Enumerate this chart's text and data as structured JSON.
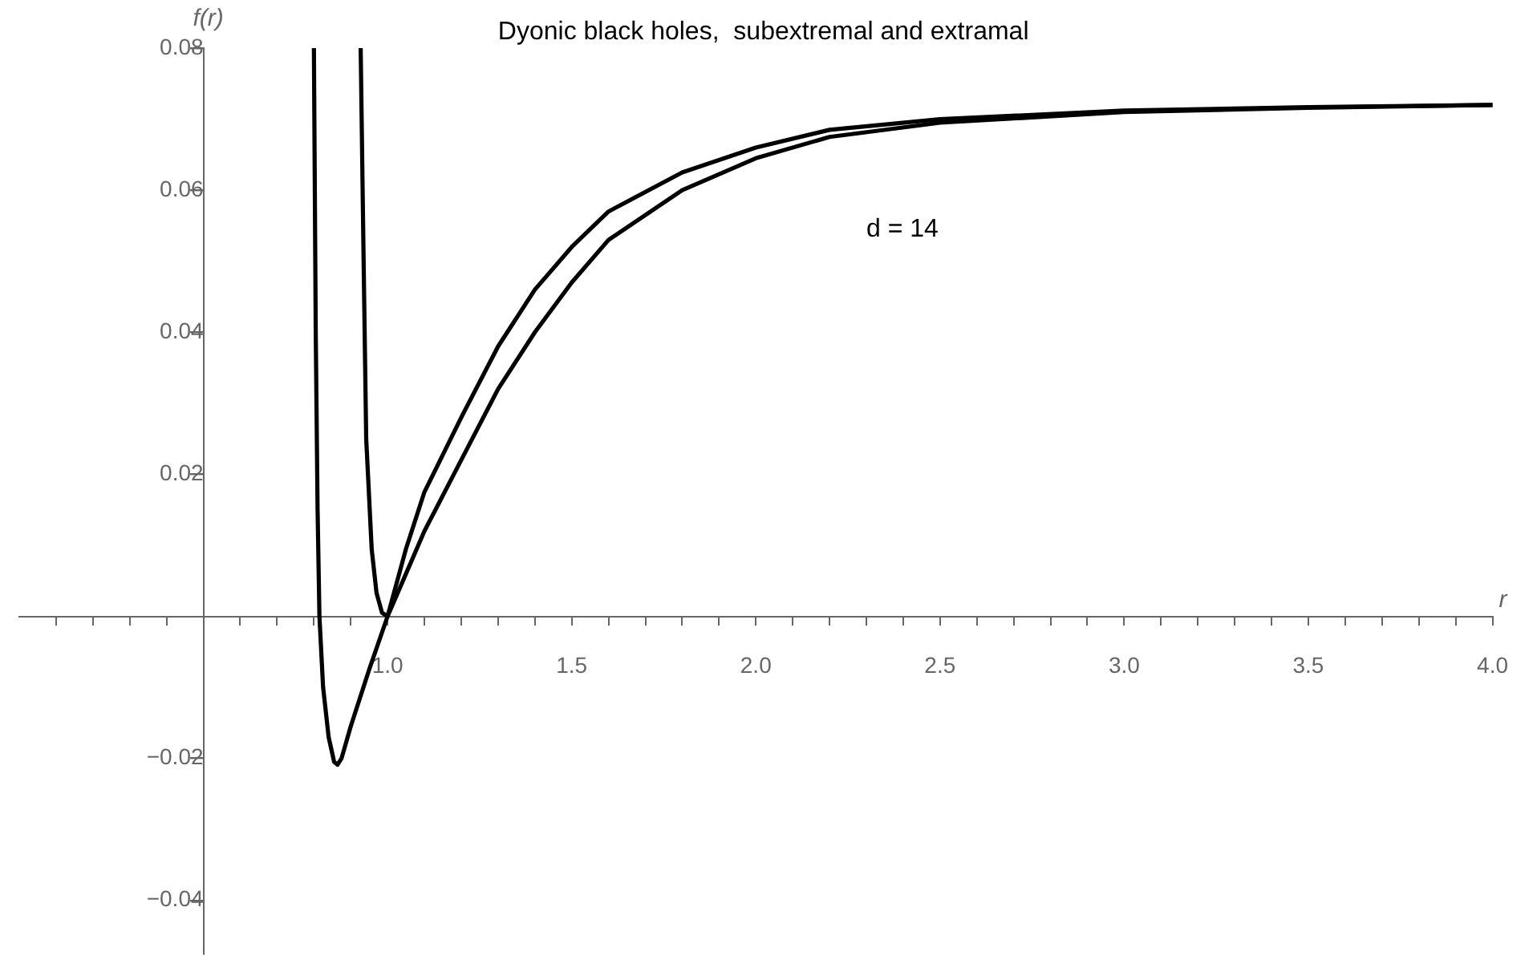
{
  "chart_data": {
    "type": "line",
    "title": "Dyonic black holes,  subextremal and extramal",
    "xlabel": "r",
    "ylabel": "f(r)",
    "annotations": [
      "d = 14"
    ],
    "xlim": [
      0,
      4
    ],
    "ylim": [
      -0.0475,
      0.08
    ],
    "xticks": [
      {
        "value": 0.1,
        "label": null
      },
      {
        "value": 0.2,
        "label": null
      },
      {
        "value": 0.3,
        "label": null
      },
      {
        "value": 0.4,
        "label": null
      },
      {
        "value": 0.6,
        "label": null
      },
      {
        "value": 0.7,
        "label": null
      },
      {
        "value": 0.8,
        "label": null
      },
      {
        "value": 0.9,
        "label": null
      },
      {
        "value": 1.0,
        "label": "1.0"
      },
      {
        "value": 1.1,
        "label": null
      },
      {
        "value": 1.2,
        "label": null
      },
      {
        "value": 1.3,
        "label": null
      },
      {
        "value": 1.4,
        "label": null
      },
      {
        "value": 1.5,
        "label": "1.5"
      },
      {
        "value": 1.6,
        "label": null
      },
      {
        "value": 1.7,
        "label": null
      },
      {
        "value": 1.8,
        "label": null
      },
      {
        "value": 1.9,
        "label": null
      },
      {
        "value": 2.0,
        "label": "2.0"
      },
      {
        "value": 2.1,
        "label": null
      },
      {
        "value": 2.2,
        "label": null
      },
      {
        "value": 2.3,
        "label": null
      },
      {
        "value": 2.4,
        "label": null
      },
      {
        "value": 2.5,
        "label": "2.5"
      },
      {
        "value": 2.6,
        "label": null
      },
      {
        "value": 2.7,
        "label": null
      },
      {
        "value": 2.8,
        "label": null
      },
      {
        "value": 2.9,
        "label": null
      },
      {
        "value": 3.0,
        "label": "3.0"
      },
      {
        "value": 3.1,
        "label": null
      },
      {
        "value": 3.2,
        "label": null
      },
      {
        "value": 3.3,
        "label": null
      },
      {
        "value": 3.4,
        "label": null
      },
      {
        "value": 3.5,
        "label": "3.5"
      },
      {
        "value": 3.6,
        "label": null
      },
      {
        "value": 3.7,
        "label": null
      },
      {
        "value": 3.8,
        "label": null
      },
      {
        "value": 3.9,
        "label": null
      },
      {
        "value": 4.0,
        "label": "4.0"
      }
    ],
    "yticks": [
      {
        "value": -0.04,
        "label": "−0.04"
      },
      {
        "value": -0.02,
        "label": "−0.02"
      },
      0.02,
      0.04,
      0.06,
      0.08
    ],
    "grid": false,
    "legend": false,
    "marker": "none",
    "line_style": "solid",
    "series": [
      {
        "color": "#000000",
        "x": [
          0.8,
          0.805,
          0.81,
          0.815,
          0.825,
          0.84,
          0.855,
          0.864,
          0.875,
          0.9,
          0.95,
          1.0,
          1.05,
          1.1,
          1.2,
          1.3,
          1.4,
          1.5,
          1.6,
          1.8,
          2.0,
          2.2,
          2.5,
          3.0,
          3.5,
          4.0
        ],
        "values": [
          0.08,
          0.04,
          0.015,
          0,
          -0.01,
          -0.017,
          -0.0205,
          -0.0209,
          -0.02,
          -0.0155,
          -0.0075,
          0,
          0.0095,
          0.0175,
          0.028,
          0.038,
          0.046,
          0.052,
          0.057,
          0.0625,
          0.066,
          0.0685,
          0.07,
          0.0712,
          0.0717,
          0.072
        ]
      },
      {
        "color": "#000000",
        "x": [
          0.927,
          0.935,
          0.942,
          0.957,
          0.97,
          0.985,
          1.0,
          1.05,
          1.1,
          1.2,
          1.3,
          1.4,
          1.5,
          1.6,
          1.8,
          2.0,
          2.2,
          2.5,
          3.0,
          3.5,
          4.0
        ],
        "values": [
          0.08,
          0.05,
          0.025,
          0.0094,
          0.0033,
          0.0005,
          0,
          0.006,
          0.012,
          0.022,
          0.032,
          0.04,
          0.047,
          0.053,
          0.06,
          0.0645,
          0.0675,
          0.0695,
          0.071,
          0.0716,
          0.072
        ]
      }
    ]
  }
}
